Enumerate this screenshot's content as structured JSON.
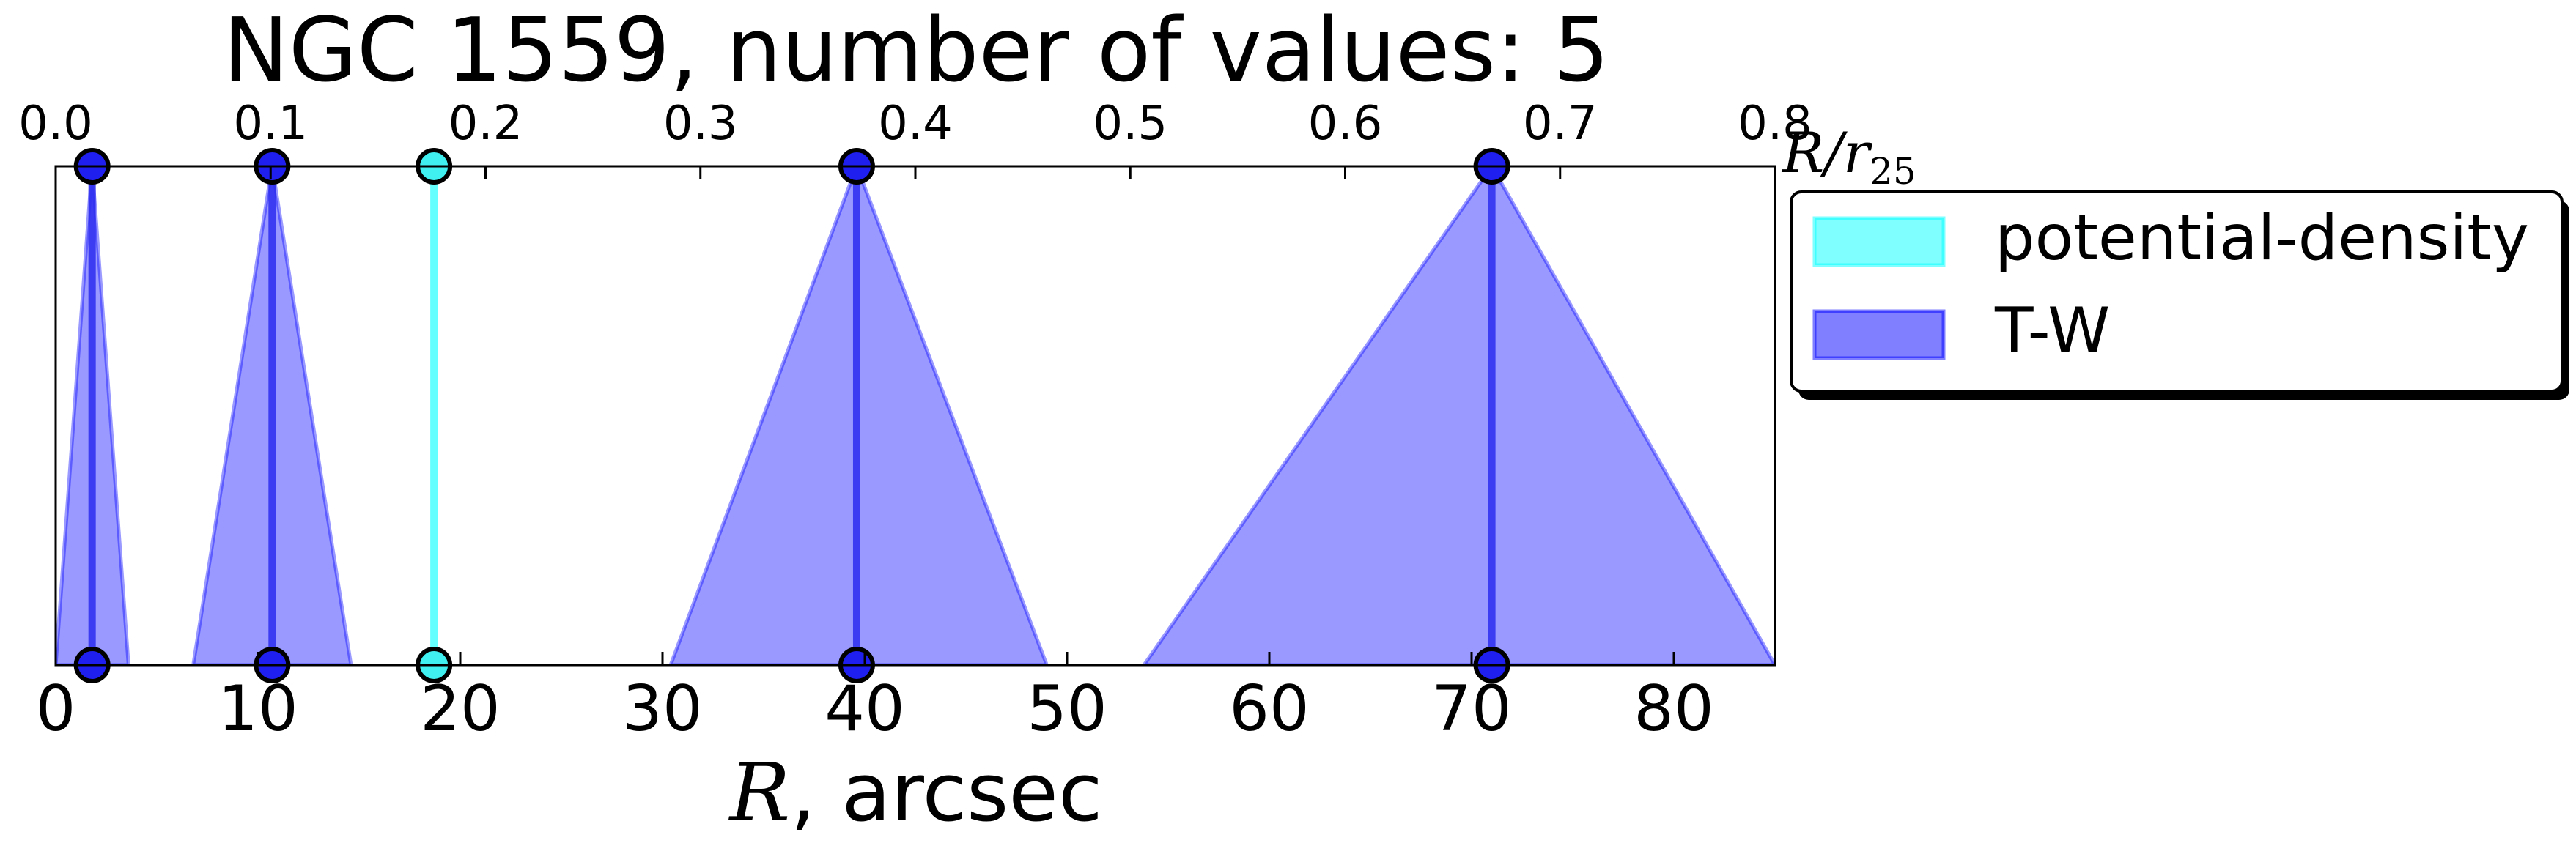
{
  "chart_data": {
    "type": "bar",
    "title": "NGC 1559, number of values: 5",
    "xlabel_symbol": "R",
    "xlabel_rest": ", arcsec",
    "top_label_main": "R/r",
    "top_label_sub": "25",
    "xlim": [
      0,
      85
    ],
    "top_xlim": [
      0.0,
      0.8
    ],
    "x_ticks": [
      "0",
      "10",
      "20",
      "30",
      "40",
      "50",
      "60",
      "70",
      "80"
    ],
    "x_tick_values": [
      0,
      10,
      20,
      30,
      40,
      50,
      60,
      70,
      80
    ],
    "top_ticks": [
      "0.0",
      "0.1",
      "0.2",
      "0.3",
      "0.4",
      "0.5",
      "0.6",
      "0.7",
      "0.8"
    ],
    "top_tick_values": [
      0.0,
      0.1,
      0.2,
      0.3,
      0.4,
      0.5,
      0.6,
      0.7,
      0.8
    ],
    "grid": false,
    "legend_position": "outside-right-top",
    "series": [
      {
        "name": "potential-density",
        "color": "#00ffff",
        "values": [
          18.7
        ],
        "uncertainty_intervals": []
      },
      {
        "name": "T-W",
        "color": "#0000ff",
        "values": [
          1.8,
          10.7,
          39.6,
          71.0
        ],
        "uncertainty_intervals": [
          [
            0.0,
            3.6
          ],
          [
            6.8,
            14.6
          ],
          [
            30.4,
            49.0
          ],
          [
            53.8,
            85.0
          ]
        ]
      }
    ]
  }
}
